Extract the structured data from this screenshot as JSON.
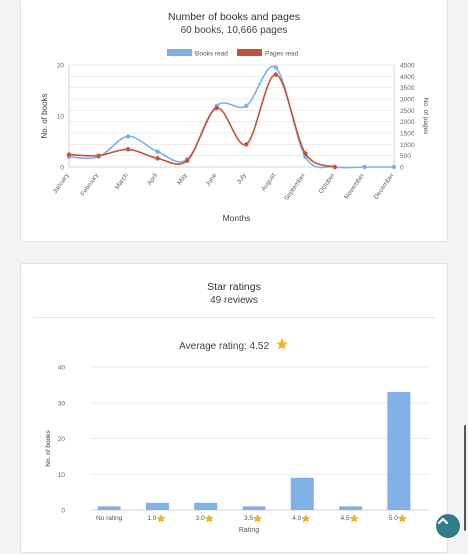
{
  "chart_data": [
    {
      "type": "line",
      "title": "Number of books and pages",
      "summary": {
        "books": "60 books",
        "sep": ", ",
        "pages": "10,666 pages"
      },
      "categories": [
        "January",
        "February",
        "March",
        "April",
        "May",
        "June",
        "July",
        "August",
        "September",
        "October",
        "November",
        "December"
      ],
      "xlabel": "Months",
      "ylabel": "No. of books",
      "y2label": "No. of pages",
      "ylim": [
        0,
        20
      ],
      "yticks": [
        "0",
        "10",
        "20"
      ],
      "y2lim": [
        0,
        4500
      ],
      "y2ticks": [
        "0",
        "500",
        "1000",
        "1500",
        "2000",
        "2500",
        "3000",
        "3500",
        "4000",
        "4500"
      ],
      "legend_position": "top",
      "grid": true,
      "series": [
        {
          "name": "Books read",
          "axis": "left",
          "color": "#7fb0e6",
          "values": [
            2,
            2,
            6,
            3,
            1.5,
            12,
            12,
            19.5,
            2,
            0,
            0,
            0
          ]
        },
        {
          "name": "Pages read",
          "axis": "right",
          "color": "#c4523d",
          "values": [
            550,
            500,
            780,
            380,
            280,
            2600,
            1000,
            4080,
            600,
            0,
            null,
            null
          ]
        }
      ]
    },
    {
      "type": "bar",
      "title": "Star ratings",
      "subtitle": "49 reviews",
      "average_label": "Average rating: 4.52",
      "categories": [
        "No rating",
        "1.0",
        "3.0",
        "3.5",
        "4.0",
        "4.5",
        "5.0"
      ],
      "star_after": [
        false,
        true,
        true,
        true,
        true,
        true,
        true
      ],
      "values": [
        1,
        2,
        2,
        1,
        9,
        1,
        33
      ],
      "xlabel": "Rating",
      "ylabel": "No. of books",
      "ylim": [
        0,
        40
      ],
      "yticks": [
        "0",
        "10",
        "20",
        "30",
        "40"
      ],
      "grid": true,
      "bar_color": "#7fb0e6"
    }
  ],
  "colors": {
    "star": "#f0b429",
    "scroll_button": "#2f7d86"
  },
  "icons": {
    "average": "star-icon",
    "tick_star": "small-star-icon",
    "scroll": "chevron-up-icon"
  }
}
